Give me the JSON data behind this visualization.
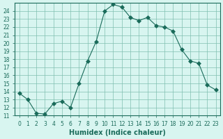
{
  "xlabel": "Humidex (Indice chaleur)",
  "ylabel": "",
  "x_values": [
    0,
    1,
    2,
    3,
    4,
    5,
    6,
    7,
    8,
    9,
    10,
    11,
    12,
    13,
    14,
    15,
    16,
    17,
    18,
    19,
    20,
    21,
    22,
    23
  ],
  "y_values": [
    13.8,
    13.0,
    11.3,
    11.2,
    12.5,
    12.8,
    12.0,
    15.0,
    17.8,
    20.2,
    24.0,
    24.8,
    24.5,
    23.2,
    22.8,
    23.2,
    22.2,
    22.0,
    21.5,
    19.2,
    17.8,
    17.5,
    14.8,
    14.2
  ],
  "line_color": "#1a6b5a",
  "marker": "D",
  "marker_size": 3,
  "bg_color": "#d8f5f0",
  "grid_color": "#7fbfb0",
  "ylim": [
    11,
    25
  ],
  "xlim": [
    -0.5,
    23.5
  ],
  "yticks": [
    11,
    12,
    13,
    14,
    15,
    16,
    17,
    18,
    19,
    20,
    21,
    22,
    23,
    24
  ],
  "xticks": [
    0,
    1,
    2,
    3,
    4,
    5,
    6,
    7,
    8,
    9,
    10,
    11,
    12,
    13,
    14,
    15,
    16,
    17,
    18,
    19,
    20,
    21,
    22,
    23
  ],
  "tick_color": "#1a6b5a",
  "label_fontsize": 7,
  "tick_fontsize": 5.5
}
